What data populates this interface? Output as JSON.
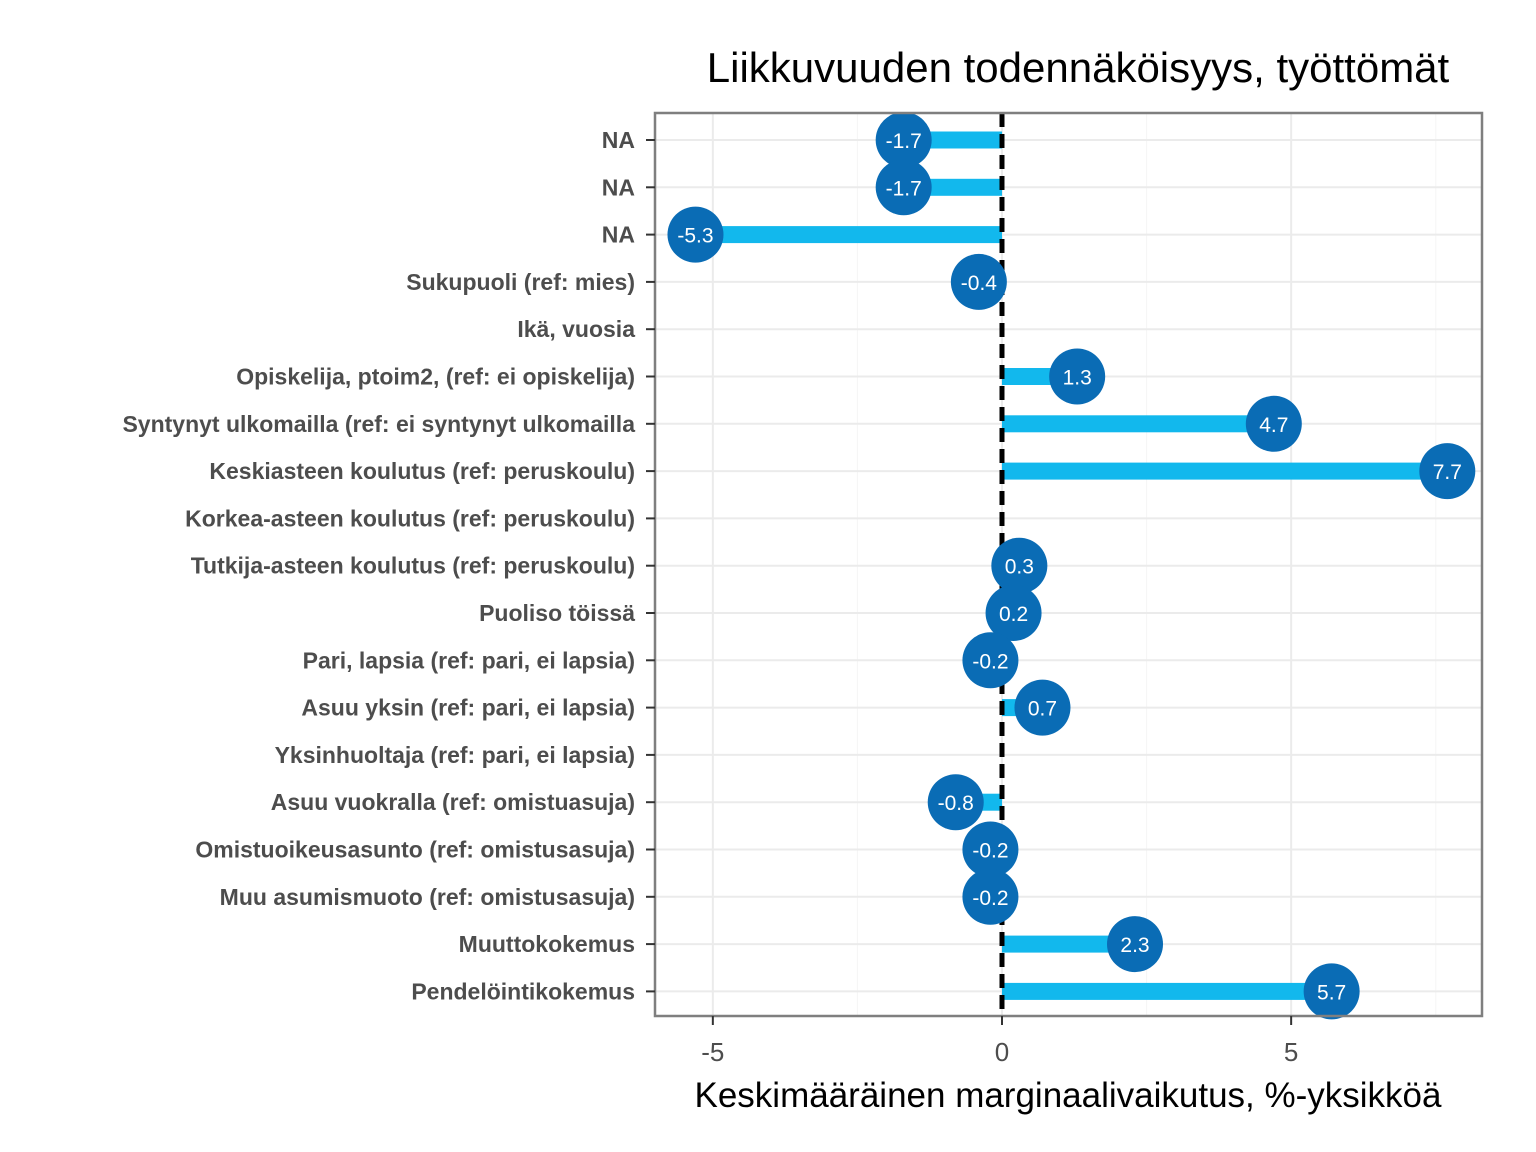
{
  "chart_data": {
    "type": "bar",
    "title": "Liikkuvuuden todennäköisyys, työttömät",
    "xlabel": "Keskimääräinen marginaalivaikutus, %-yksikköä",
    "ylabel": "",
    "xlim": [
      -6,
      8.3
    ],
    "xticks": [
      -5,
      0,
      5
    ],
    "xtick_labels": [
      "-5",
      "0",
      "5"
    ],
    "reference_line": 0,
    "grid": true,
    "categories": [
      "NA",
      "NA",
      "NA",
      "Sukupuoli (ref: mies)",
      "Ikä, vuosia",
      "Opiskelija, ptoim2, (ref: ei opiskelija)",
      "Syntynyt ulkomailla (ref: ei syntynyt ulkomailla",
      "Keskiasteen koulutus (ref: peruskoulu)",
      "Korkea-asteen koulutus (ref: peruskoulu)",
      "Tutkija-asteen koulutus (ref: peruskoulu)",
      "Puoliso töissä",
      "Pari, lapsia (ref: pari, ei lapsia)",
      "Asuu yksin (ref: pari, ei lapsia)",
      "Yksinhuoltaja (ref: pari, ei lapsia)",
      "Asuu vuokralla (ref: omistuasuja)",
      "Omistuoikeusasunto (ref: omistusasuja)",
      "Muu asumismuoto (ref: omistusasuja)",
      "Muuttokokemus",
      "Pendelöintikokemus"
    ],
    "values": [
      -1.7,
      -1.7,
      -5.3,
      -0.4,
      null,
      1.3,
      4.7,
      7.7,
      null,
      0.3,
      0.2,
      -0.2,
      0.7,
      null,
      -0.8,
      -0.2,
      -0.2,
      2.3,
      5.7
    ],
    "labels": [
      "-1.7",
      "-1.7",
      "-5.3",
      "-0.4",
      "",
      "1.3",
      "4.7",
      "7.7",
      "",
      "0.3",
      "0.2",
      "-0.2",
      "0.7",
      "",
      "-0.8",
      "-0.2",
      "-0.2",
      "2.3",
      "5.7"
    ],
    "colors": {
      "bar": "#12b8ed",
      "point": "#0a6cb5",
      "ref_line": "#000000",
      "grid": "#ebebeb",
      "panel_border": "#7f7f7f"
    }
  }
}
